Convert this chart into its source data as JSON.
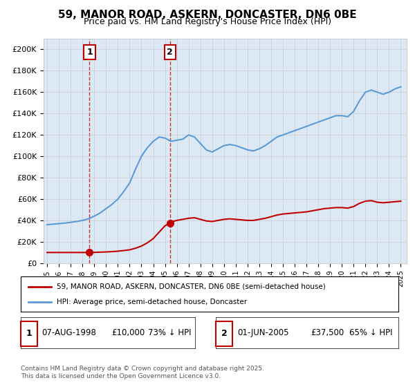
{
  "title": "59, MANOR ROAD, ASKERN, DONCASTER, DN6 0BE",
  "subtitle": "Price paid vs. HM Land Registry's House Price Index (HPI)",
  "background_color": "#dce9f5",
  "plot_background": "#dce9f5",
  "ylabel": "",
  "xlim_start": 1995,
  "xlim_end": 2025.5,
  "ylim_min": 0,
  "ylim_max": 210000,
  "yticks": [
    0,
    20000,
    40000,
    60000,
    80000,
    100000,
    120000,
    140000,
    160000,
    180000,
    200000
  ],
  "ytick_labels": [
    "£0",
    "£20K",
    "£40K",
    "£60K",
    "£80K",
    "£100K",
    "£120K",
    "£140K",
    "£160K",
    "£180K",
    "£200K"
  ],
  "hpi_color": "#5b9bd5",
  "price_color": "#c00000",
  "marker_color": "#c00000",
  "dashed_line_color": "#c00000",
  "transaction1_x": 1998.6,
  "transaction1_y": 10000,
  "transaction1_label": "1",
  "transaction1_date": "07-AUG-1998",
  "transaction1_price": "£10,000",
  "transaction1_hpi": "73% ↓ HPI",
  "transaction2_x": 2005.42,
  "transaction2_y": 37500,
  "transaction2_label": "2",
  "transaction2_date": "01-JUN-2005",
  "transaction2_price": "£37,500",
  "transaction2_hpi": "65% ↓ HPI",
  "legend_label1": "59, MANOR ROAD, ASKERN, DONCASTER, DN6 0BE (semi-detached house)",
  "legend_label2": "HPI: Average price, semi-detached house, Doncaster",
  "footer": "Contains HM Land Registry data © Crown copyright and database right 2025.\nThis data is licensed under the Open Government Licence v3.0.",
  "hpi_years": [
    1995,
    1995.5,
    1996,
    1996.5,
    1997,
    1997.5,
    1998,
    1998.5,
    1999,
    1999.5,
    2000,
    2000.5,
    2001,
    2001.5,
    2002,
    2002.5,
    2003,
    2003.5,
    2004,
    2004.5,
    2005,
    2005.5,
    2006,
    2006.5,
    2007,
    2007.5,
    2008,
    2008.5,
    2009,
    2009.5,
    2010,
    2010.5,
    2011,
    2011.5,
    2012,
    2012.5,
    2013,
    2013.5,
    2014,
    2014.5,
    2015,
    2015.5,
    2016,
    2016.5,
    2017,
    2017.5,
    2018,
    2018.5,
    2019,
    2019.5,
    2020,
    2020.5,
    2021,
    2021.5,
    2022,
    2022.5,
    2023,
    2023.5,
    2024,
    2024.5,
    2025
  ],
  "hpi_values": [
    36000,
    36500,
    37000,
    37500,
    38200,
    39000,
    40000,
    41500,
    44000,
    47000,
    51000,
    55000,
    60000,
    67000,
    75000,
    88000,
    100000,
    108000,
    114000,
    118000,
    117000,
    114000,
    115000,
    116000,
    120000,
    118000,
    112000,
    106000,
    104000,
    107000,
    110000,
    111000,
    110000,
    108000,
    106000,
    105000,
    107000,
    110000,
    114000,
    118000,
    120000,
    122000,
    124000,
    126000,
    128000,
    130000,
    132000,
    134000,
    136000,
    138000,
    138000,
    137000,
    142000,
    152000,
    160000,
    162000,
    160000,
    158000,
    160000,
    163000,
    165000
  ],
  "price_years": [
    1995.0,
    1995.5,
    1996.0,
    1996.5,
    1997.0,
    1997.5,
    1998.0,
    1998.5,
    1998.6,
    1999.0,
    1999.5,
    2000.0,
    2000.5,
    2001.0,
    2001.5,
    2002.0,
    2002.5,
    2003.0,
    2003.5,
    2004.0,
    2004.5,
    2005.0,
    2005.42,
    2005.5,
    2006.0,
    2006.5,
    2007.0,
    2007.5,
    2008.0,
    2008.5,
    2009.0,
    2009.5,
    2010.0,
    2010.5,
    2011.0,
    2011.5,
    2012.0,
    2012.5,
    2013.0,
    2013.5,
    2014.0,
    2014.5,
    2015.0,
    2015.5,
    2016.0,
    2016.5,
    2017.0,
    2017.5,
    2018.0,
    2018.5,
    2019.0,
    2019.5,
    2020.0,
    2020.5,
    2021.0,
    2021.5,
    2022.0,
    2022.5,
    2023.0,
    2023.5,
    2024.0,
    2024.5,
    2025.0
  ],
  "price_values": [
    10000,
    10000,
    10000,
    10000,
    10000,
    10000,
    10000,
    10000,
    10000,
    10100,
    10300,
    10500,
    10800,
    11200,
    11800,
    12500,
    14000,
    16000,
    19000,
    23000,
    29000,
    35000,
    37500,
    38500,
    40000,
    41000,
    42000,
    42500,
    41000,
    39500,
    39000,
    40000,
    41000,
    41500,
    41000,
    40500,
    40000,
    40000,
    41000,
    42000,
    43500,
    45000,
    46000,
    46500,
    47000,
    47500,
    48000,
    49000,
    50000,
    51000,
    51500,
    52000,
    52000,
    51500,
    53000,
    56000,
    58000,
    58500,
    57000,
    56500,
    57000,
    57500,
    58000
  ]
}
